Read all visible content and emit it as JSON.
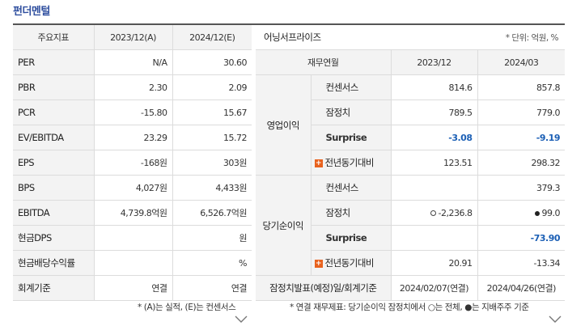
{
  "title": "펀더멘털",
  "left": {
    "headers": [
      "주요지표",
      "2023/12(A)",
      "2024/12(E)"
    ],
    "rows": [
      {
        "label": "PER",
        "a": "N/A",
        "e": "30.60"
      },
      {
        "label": "PBR",
        "a": "2.30",
        "e": "2.09"
      },
      {
        "label": "PCR",
        "a": "-15.80",
        "e": "15.67"
      },
      {
        "label": "EV/EBITDA",
        "a": "23.29",
        "e": "15.72"
      },
      {
        "label": "EPS",
        "a": "-168원",
        "e": "303원"
      },
      {
        "label": "BPS",
        "a": "4,027원",
        "e": "4,433원"
      },
      {
        "label": "EBITDA",
        "a": "4,739.8억원",
        "e": "6,526.7억원"
      },
      {
        "label": "현금DPS",
        "a": "",
        "e": "원"
      },
      {
        "label": "현금배당수익률",
        "a": "",
        "e": "%"
      },
      {
        "label": "회계기준",
        "a": "연결",
        "e": "연결"
      }
    ],
    "note": "* (A)는 실적, (E)는 컨센서스"
  },
  "right": {
    "title": "어닝서프라이즈",
    "unit": "* 단위: 억원, %",
    "headers": [
      "재무연월",
      "2023/12",
      "2024/03"
    ],
    "groups": [
      {
        "name": "영업이익",
        "rows": [
          {
            "label": "컨센서스",
            "v1": "814.6",
            "v2": "857.8"
          },
          {
            "label": "잠정치",
            "v1": "789.5",
            "v2": "779.0"
          },
          {
            "label": "Surprise",
            "v1": "-3.08",
            "v2": "-9.19"
          },
          {
            "label": "전년동기대비",
            "v1": "123.51",
            "v2": "298.32"
          }
        ]
      },
      {
        "name": "당기순이익",
        "rows": [
          {
            "label": "컨센서스",
            "v1": "",
            "v2": "379.3"
          },
          {
            "label": "잠정치",
            "v1": "-2,236.8",
            "v2": "99.0"
          },
          {
            "label": "Surprise",
            "v1": "",
            "v2": "-73.90"
          },
          {
            "label": "전년동기대비",
            "v1": "20.91",
            "v2": "-13.34"
          }
        ]
      }
    ],
    "footer": {
      "label": "잠정치발표(예정)일/회계기준",
      "v1": "2024/02/07(연결)",
      "v2": "2024/04/26(연결)"
    },
    "note": "* 연결 재무제표: 당기순이익 잠정치에서 ○는 전체, ●는 지배주주 기준"
  },
  "colors": {
    "title": "#2f4f9f",
    "surprise": "#1b5fb5",
    "plus": "#e8621e",
    "header_bg": "#f3f3f3"
  }
}
